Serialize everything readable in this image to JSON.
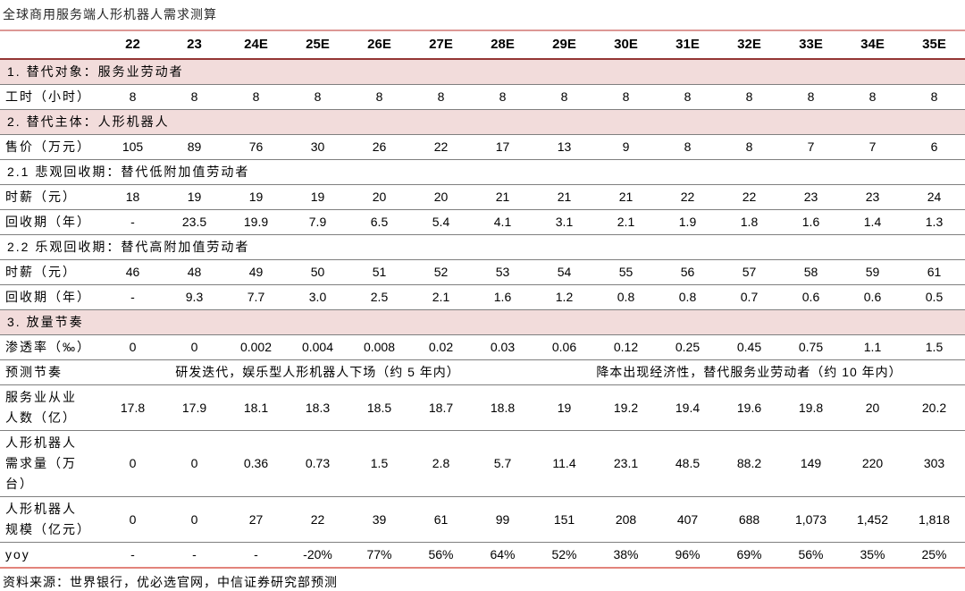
{
  "title": "全球商用服务端人形机器人需求测算",
  "footer": "资料来源：世界银行，优必选官网，中信证券研究部预测",
  "colors": {
    "section_row_bg": "#f2dcdb",
    "table_top_border": "#dc9895",
    "header_underline": "#943634",
    "row_divider": "#7f7f7f",
    "table_bottom_border": "#e2837b",
    "text": "#000000"
  },
  "chart_data": {
    "type": "table",
    "title": "全球商用服务端人形机器人需求测算",
    "columns": [
      "22",
      "23",
      "24E",
      "25E",
      "26E",
      "27E",
      "28E",
      "29E",
      "30E",
      "31E",
      "32E",
      "33E",
      "34E",
      "35E"
    ],
    "rows": [
      {
        "type": "section",
        "label": "1. 替代对象：服务业劳动者"
      },
      {
        "type": "data",
        "label": "工时（小时）",
        "values": [
          "8",
          "8",
          "8",
          "8",
          "8",
          "8",
          "8",
          "8",
          "8",
          "8",
          "8",
          "8",
          "8",
          "8"
        ]
      },
      {
        "type": "section",
        "label": "2. 替代主体：人形机器人"
      },
      {
        "type": "data",
        "label": "售价（万元）",
        "values": [
          "105",
          "89",
          "76",
          "30",
          "26",
          "22",
          "17",
          "13",
          "9",
          "8",
          "8",
          "7",
          "7",
          "6"
        ]
      },
      {
        "type": "subsection",
        "label": "2.1 悲观回收期：替代低附加值劳动者"
      },
      {
        "type": "data",
        "label": "时薪（元）",
        "values": [
          "18",
          "19",
          "19",
          "19",
          "20",
          "20",
          "21",
          "21",
          "21",
          "22",
          "22",
          "23",
          "23",
          "24"
        ]
      },
      {
        "type": "data",
        "label": "回收期（年）",
        "values": [
          "-",
          "23.5",
          "19.9",
          "7.9",
          "6.5",
          "5.4",
          "4.1",
          "3.1",
          "2.1",
          "1.9",
          "1.8",
          "1.6",
          "1.4",
          "1.3"
        ]
      },
      {
        "type": "subsection",
        "label": "2.2 乐观回收期：替代高附加值劳动者"
      },
      {
        "type": "data",
        "label": "时薪（元）",
        "values": [
          "46",
          "48",
          "49",
          "50",
          "51",
          "52",
          "53",
          "54",
          "55",
          "56",
          "57",
          "58",
          "59",
          "61"
        ]
      },
      {
        "type": "data",
        "label": "回收期（年）",
        "values": [
          "-",
          "9.3",
          "7.7",
          "3.0",
          "2.5",
          "2.1",
          "1.6",
          "1.2",
          "0.8",
          "0.8",
          "0.7",
          "0.6",
          "0.6",
          "0.5"
        ]
      },
      {
        "type": "section",
        "label": "3. 放量节奏"
      },
      {
        "type": "data",
        "label": "渗透率（‰）",
        "values": [
          "0",
          "0",
          "0.002",
          "0.004",
          "0.008",
          "0.02",
          "0.03",
          "0.06",
          "0.12",
          "0.25",
          "0.45",
          "0.75",
          "1.1",
          "1.5"
        ]
      },
      {
        "type": "span",
        "label": "预测节奏",
        "spans": [
          {
            "text": "研发迭代，娱乐型人形机器人下场（约 5 年内）",
            "cols": 7
          },
          {
            "text": "降本出现经济性，替代服务业劳动者（约 10 年内）",
            "cols": 7
          }
        ]
      },
      {
        "type": "data",
        "label": "服务业从业\n人数（亿）",
        "values": [
          "17.8",
          "17.9",
          "18.1",
          "18.3",
          "18.5",
          "18.7",
          "18.8",
          "19",
          "19.2",
          "19.4",
          "19.6",
          "19.8",
          "20",
          "20.2"
        ]
      },
      {
        "type": "data",
        "label": "人形机器人\n需求量（万\n台）",
        "values": [
          "0",
          "0",
          "0.36",
          "0.73",
          "1.5",
          "2.8",
          "5.7",
          "11.4",
          "23.1",
          "48.5",
          "88.2",
          "149",
          "220",
          "303"
        ]
      },
      {
        "type": "data",
        "label": "人形机器人\n规模（亿元）",
        "values": [
          "0",
          "0",
          "27",
          "22",
          "39",
          "61",
          "99",
          "151",
          "208",
          "407",
          "688",
          "1,073",
          "1,452",
          "1,818"
        ]
      },
      {
        "type": "data",
        "label": "yoy",
        "values": [
          "-",
          "-",
          "-",
          "-20%",
          "77%",
          "56%",
          "64%",
          "52%",
          "38%",
          "96%",
          "69%",
          "56%",
          "35%",
          "25%"
        ]
      }
    ]
  }
}
